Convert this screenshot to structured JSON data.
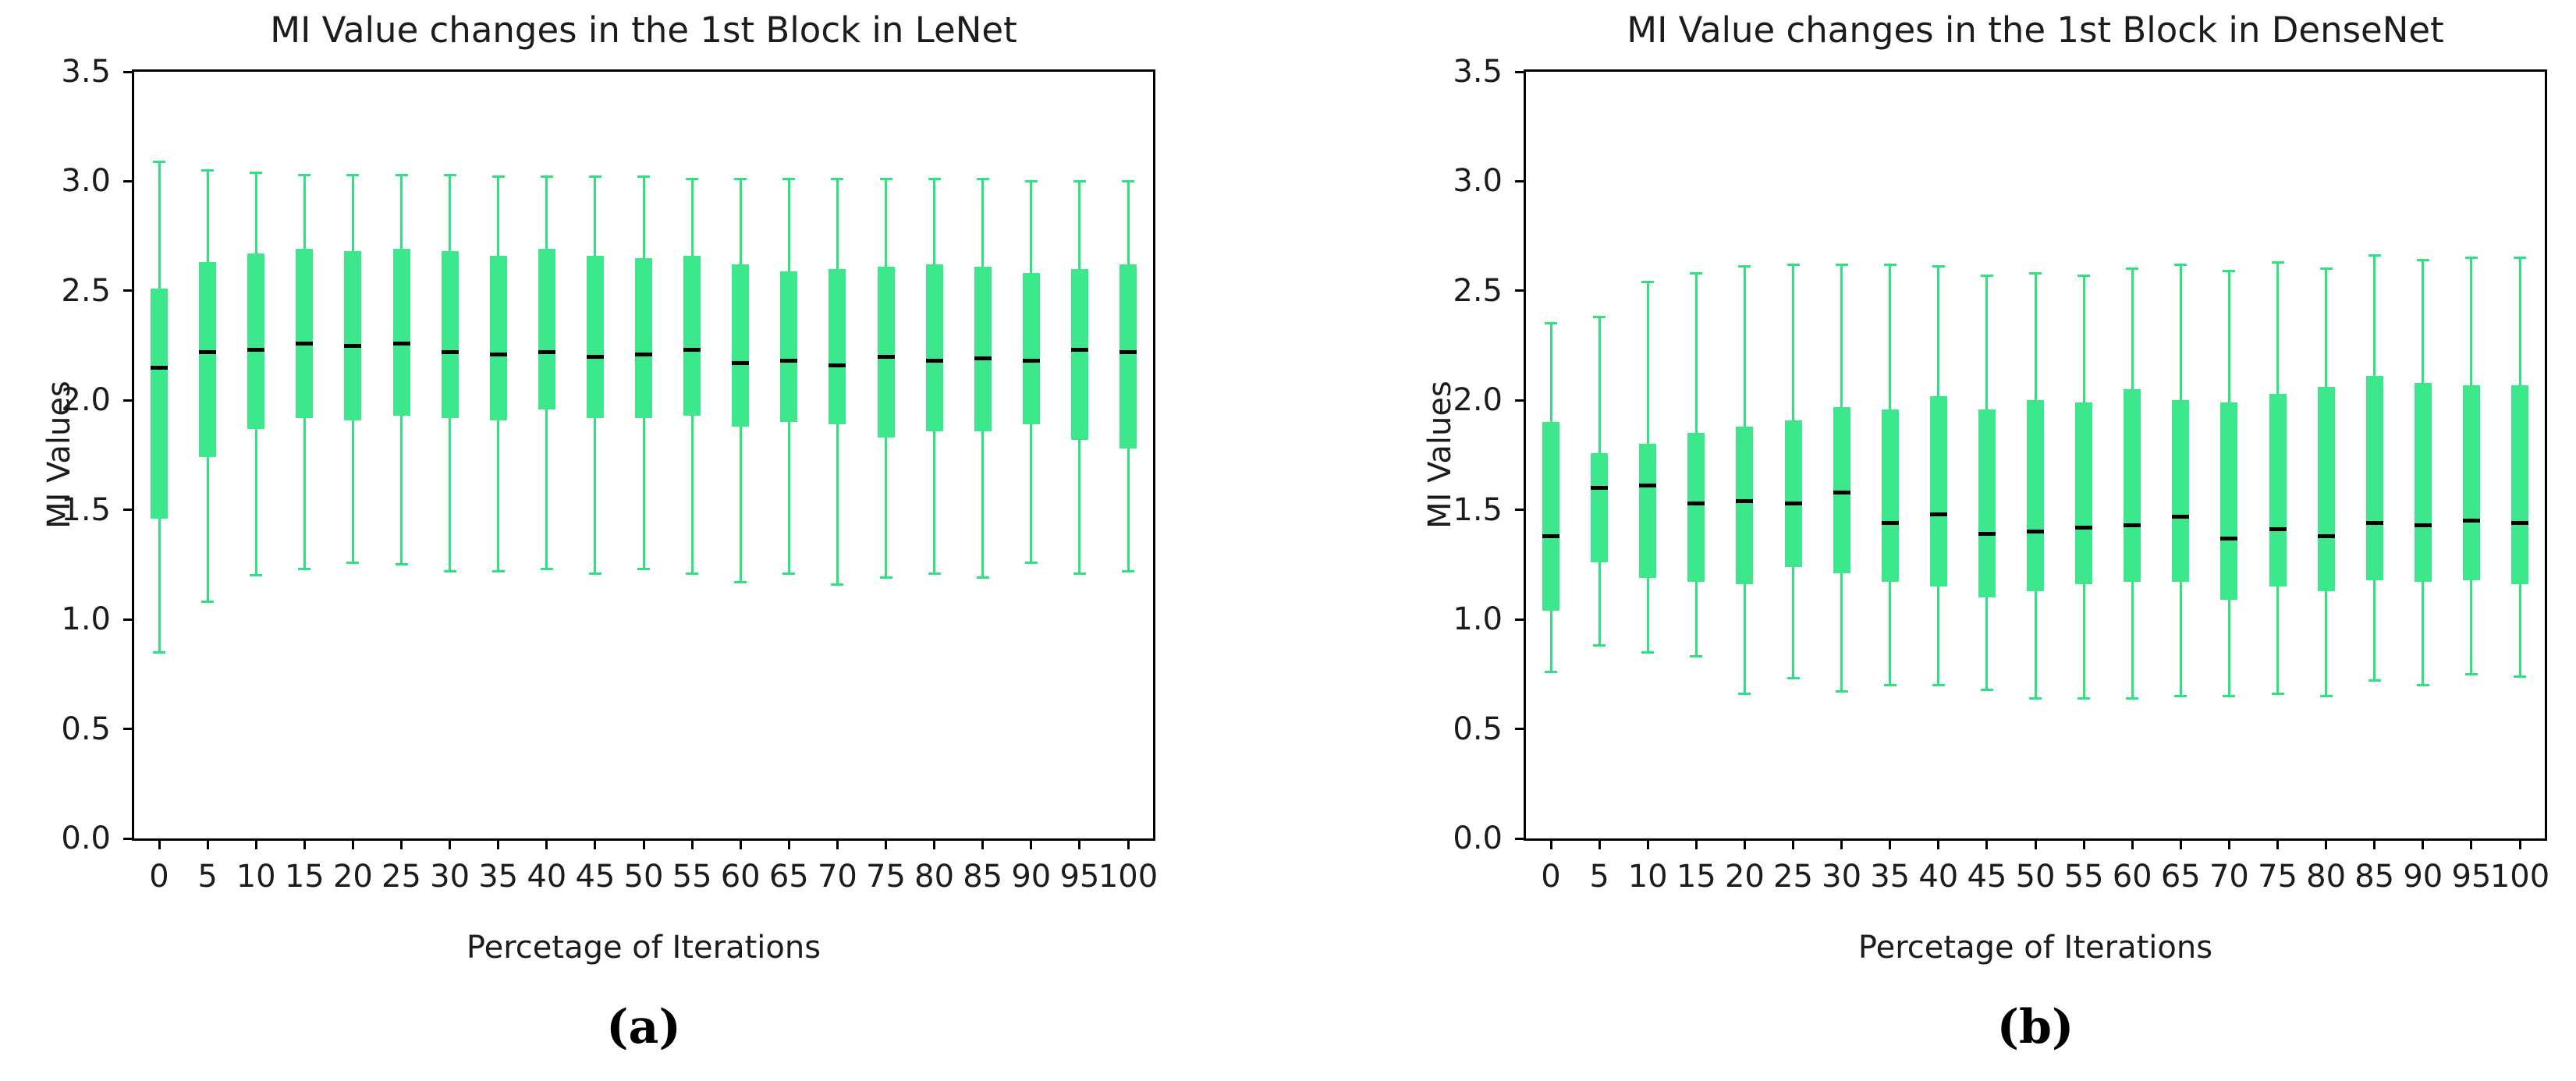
{
  "page": {
    "background": "#ffffff"
  },
  "colors": {
    "box_fill": "#3de88c",
    "whisker": "#2ee27f",
    "median": "#000000",
    "axis": "#000000",
    "text": "#1c1c1c"
  },
  "chart_data": [
    {
      "type": "boxplot",
      "title": "MI Value changes in the 1st Block in LeNet",
      "caption": "(a)",
      "xlabel": "Percetage of Iterations",
      "ylabel": "MI Values",
      "ylim": [
        0.0,
        3.5
      ],
      "grid": false,
      "yticks": [
        "3.5",
        "3.0",
        "2.5",
        "2.0",
        "1.5",
        "1.0",
        "0.5",
        "0.0"
      ],
      "categories": [
        "0",
        "5",
        "10",
        "15",
        "20",
        "25",
        "30",
        "35",
        "40",
        "45",
        "50",
        "55",
        "60",
        "65",
        "70",
        "75",
        "80",
        "85",
        "90",
        "95",
        "100"
      ],
      "boxes": {
        "whisker_low": [
          0.85,
          1.08,
          1.2,
          1.23,
          1.26,
          1.25,
          1.22,
          1.22,
          1.23,
          1.21,
          1.23,
          1.21,
          1.17,
          1.21,
          1.16,
          1.19,
          1.21,
          1.19,
          1.26,
          1.21,
          1.22
        ],
        "q1": [
          1.46,
          1.74,
          1.87,
          1.92,
          1.91,
          1.93,
          1.92,
          1.91,
          1.96,
          1.92,
          1.92,
          1.93,
          1.88,
          1.9,
          1.89,
          1.83,
          1.86,
          1.86,
          1.89,
          1.82,
          1.78
        ],
        "median": [
          2.15,
          2.22,
          2.23,
          2.26,
          2.25,
          2.26,
          2.22,
          2.21,
          2.22,
          2.2,
          2.21,
          2.23,
          2.17,
          2.18,
          2.16,
          2.2,
          2.18,
          2.19,
          2.18,
          2.23,
          2.22
        ],
        "q3": [
          2.51,
          2.63,
          2.67,
          2.69,
          2.68,
          2.69,
          2.68,
          2.66,
          2.69,
          2.66,
          2.65,
          2.66,
          2.62,
          2.59,
          2.6,
          2.61,
          2.62,
          2.61,
          2.58,
          2.6,
          2.62
        ],
        "whisker_high": [
          3.09,
          3.05,
          3.04,
          3.03,
          3.03,
          3.03,
          3.03,
          3.02,
          3.02,
          3.02,
          3.02,
          3.01,
          3.01,
          3.01,
          3.01,
          3.01,
          3.01,
          3.01,
          3.0,
          3.0,
          3.0
        ]
      }
    },
    {
      "type": "boxplot",
      "title": "MI Value changes in the 1st Block in DenseNet",
      "caption": "(b)",
      "xlabel": "Percetage of Iterations",
      "ylabel": "MI Values",
      "ylim": [
        0.0,
        3.5
      ],
      "grid": false,
      "yticks": [
        "3.5",
        "3.0",
        "2.5",
        "2.0",
        "1.5",
        "1.0",
        "0.5",
        "0.0"
      ],
      "categories": [
        "0",
        "5",
        "10",
        "15",
        "20",
        "25",
        "30",
        "35",
        "40",
        "45",
        "50",
        "55",
        "60",
        "65",
        "70",
        "75",
        "80",
        "85",
        "90",
        "95",
        "100"
      ],
      "boxes": {
        "whisker_low": [
          0.76,
          0.88,
          0.85,
          0.83,
          0.66,
          0.73,
          0.67,
          0.7,
          0.7,
          0.68,
          0.64,
          0.64,
          0.64,
          0.65,
          0.65,
          0.66,
          0.65,
          0.72,
          0.7,
          0.75,
          0.74
        ],
        "q1": [
          1.04,
          1.26,
          1.19,
          1.17,
          1.16,
          1.24,
          1.21,
          1.17,
          1.15,
          1.1,
          1.13,
          1.16,
          1.17,
          1.17,
          1.09,
          1.15,
          1.13,
          1.18,
          1.17,
          1.18,
          1.16
        ],
        "median": [
          1.38,
          1.6,
          1.61,
          1.53,
          1.54,
          1.53,
          1.58,
          1.44,
          1.48,
          1.39,
          1.4,
          1.42,
          1.43,
          1.47,
          1.37,
          1.41,
          1.38,
          1.44,
          1.43,
          1.45,
          1.44
        ],
        "q3": [
          1.9,
          1.76,
          1.8,
          1.85,
          1.88,
          1.91,
          1.97,
          1.96,
          2.02,
          1.96,
          2.0,
          1.99,
          2.05,
          2.0,
          1.99,
          2.03,
          2.06,
          2.11,
          2.08,
          2.07,
          2.07
        ],
        "whisker_high": [
          2.35,
          2.38,
          2.54,
          2.58,
          2.61,
          2.62,
          2.62,
          2.62,
          2.61,
          2.57,
          2.58,
          2.57,
          2.6,
          2.62,
          2.59,
          2.63,
          2.6,
          2.66,
          2.64,
          2.65,
          2.65
        ]
      }
    }
  ]
}
